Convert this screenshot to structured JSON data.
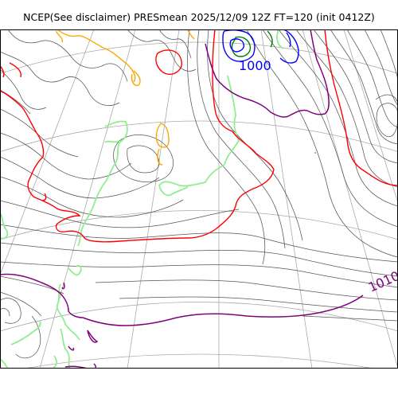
{
  "title": "NCEP(See disclaimer) PRESmean 2025/12/09 12Z FT=120 (init 0412Z)",
  "contour_labels": {
    "low_center": "1000",
    "right_edge": "1010"
  },
  "colors": {
    "thin_isobar": "#555555",
    "coastline": "#90ee90",
    "graticule": "#aaaaaa",
    "isobar_1000": "#0000ff",
    "isobar_1010": "#800080",
    "isobar_1016": "#ff0000",
    "isobar_1020": "#ffa500",
    "isobar_996": "#008000"
  }
}
